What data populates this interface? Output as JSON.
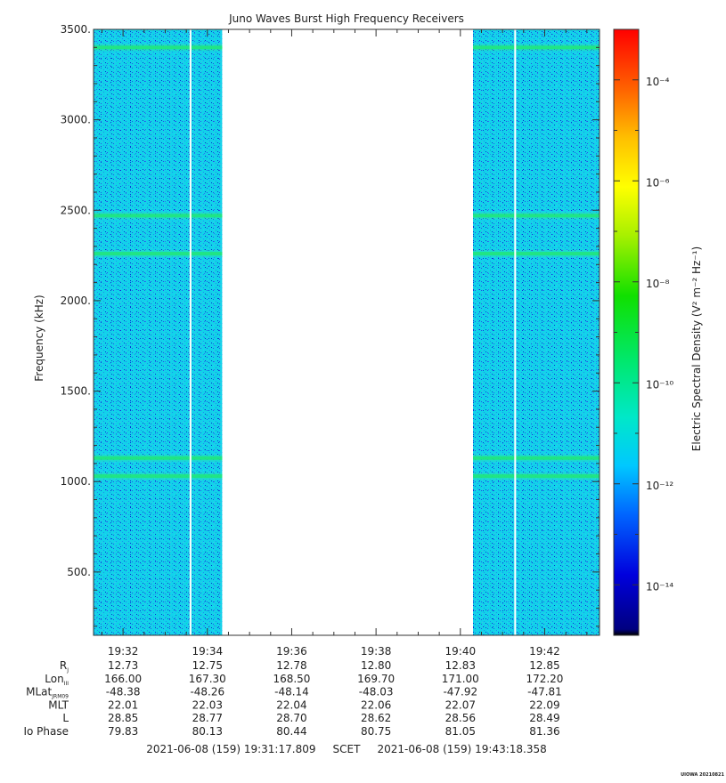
{
  "chart_data": {
    "type": "heatmap",
    "title": "Juno Waves Burst High Frequency Receivers",
    "ylabel": "Frequency (kHz)",
    "ylim": [
      150,
      3500
    ],
    "y_ticks": [
      "500.",
      "1000.",
      "1500.",
      "2000.",
      "2500.",
      "3000.",
      "3500."
    ],
    "y_tick_values": [
      500,
      1000,
      1500,
      2000,
      2500,
      3000,
      3500
    ],
    "x_time_ticks": [
      "19:32",
      "19:34",
      "19:36",
      "19:38",
      "19:40",
      "19:42"
    ],
    "xlim_minutes": [
      31.3,
      43.3
    ],
    "x_tick_minutes": [
      32,
      34,
      36,
      38,
      40,
      42
    ],
    "data_segments": [
      {
        "start_minute": 31.3,
        "end_minute": 34.35
      },
      {
        "start_minute": 40.3,
        "end_minute": 43.3
      }
    ],
    "gaps": [
      {
        "minute": 33.6
      },
      {
        "minute": 41.3
      }
    ],
    "emission_bands_khz": [
      3400,
      2470,
      2260,
      1130,
      1030
    ],
    "background_level": "1e-12",
    "colorbar": {
      "label": "Electric Spectral Density (V² m⁻² Hz⁻¹)",
      "scale": "log",
      "range_exponent": [
        -15,
        -3
      ],
      "tick_exponents": [
        -14,
        -12,
        -10,
        -8,
        -6,
        -4
      ],
      "tick_labels": [
        "10⁻¹⁴",
        "10⁻¹²",
        "10⁻¹⁰",
        "10⁻⁸",
        "10⁻⁶",
        "10⁻⁴"
      ]
    },
    "ephemeris": {
      "row_labels": [
        {
          "text": "R",
          "sub": "J"
        },
        {
          "text": "Lon",
          "sub": "III"
        },
        {
          "text": "MLat",
          "sub": "JRM09"
        },
        {
          "text": "MLT",
          "sub": ""
        },
        {
          "text": "L",
          "sub": ""
        },
        {
          "text": "Io Phase",
          "sub": ""
        }
      ],
      "columns": [
        [
          "12.73",
          "166.00",
          "-48.38",
          "22.01",
          "28.85",
          "79.83"
        ],
        [
          "12.75",
          "167.30",
          "-48.26",
          "22.03",
          "28.77",
          "80.13"
        ],
        [
          "12.78",
          "168.50",
          "-48.14",
          "22.04",
          "28.70",
          "80.44"
        ],
        [
          "12.80",
          "169.70",
          "-48.03",
          "22.06",
          "28.62",
          "80.75"
        ],
        [
          "12.83",
          "171.00",
          "-47.92",
          "22.07",
          "28.56",
          "81.05"
        ],
        [
          "12.85",
          "172.20",
          "-47.81",
          "22.09",
          "28.49",
          "81.36"
        ]
      ]
    },
    "time_range_text": "2021-06-08 (159) 19:31:17.809     SCET     2021-06-08 (159) 19:43:18.358",
    "credit": "UIOWA 20210821"
  }
}
